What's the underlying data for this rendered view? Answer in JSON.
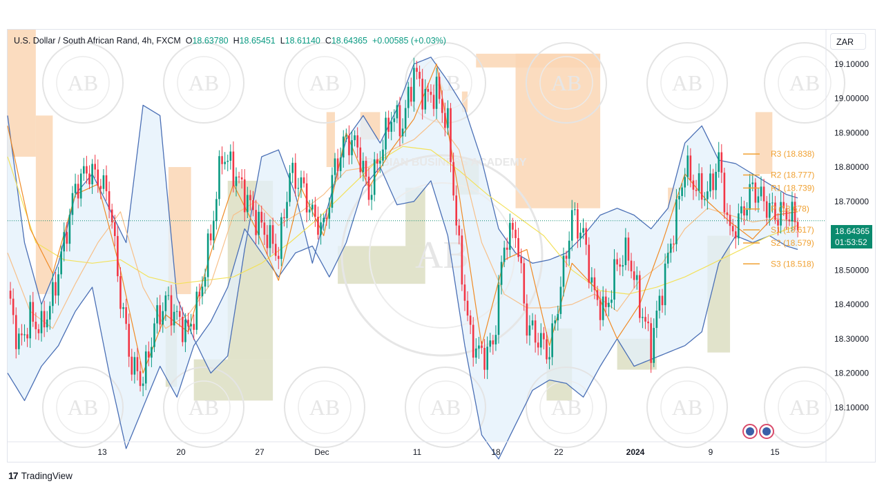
{
  "header": {
    "symbol": "U.S. Dollar / South African Rand, 4h, FXCM",
    "open_label": "O",
    "open": "18.63780",
    "high_label": "H",
    "high": "18.65451",
    "low_label": "L",
    "low": "18.61140",
    "close_label": "C",
    "close": "18.64365",
    "change": "+0.00585 (+0.03%)"
  },
  "currency_button": "ZAR",
  "price_tag": {
    "price": "18.64365",
    "countdown": "01:53:52"
  },
  "watermark": {
    "brand": "AB",
    "arc_text": "ARABIAN BUSINESS ACADEMY"
  },
  "footer": {
    "brand": "TradingView"
  },
  "colors": {
    "up": "#089981",
    "down": "#f23645",
    "band": "#4a6fb5",
    "band_fill": "#e3f0fb",
    "ma_orange": "#f08a24",
    "ma_yellow": "#f3e15a",
    "pivot": "#f0a030",
    "supply_zone": "#fad6b4",
    "demand_zone": "#d7d9b9",
    "price_line": "#0a8a6e"
  },
  "chart_data": {
    "type": "line",
    "title": "U.S. Dollar / South African Rand, 4h, FXCM",
    "ylim": [
      18.0,
      19.2
    ],
    "y_ticks": [
      "18.10000",
      "18.20000",
      "18.30000",
      "18.40000",
      "18.50000",
      "18.60000",
      "18.70000",
      "18.80000",
      "18.90000",
      "19.00000",
      "19.10000"
    ],
    "x_ticks": [
      "13",
      "20",
      "27",
      "Dec",
      "11",
      "18",
      "22",
      "2024",
      "9",
      "15"
    ],
    "last_price": 18.64365,
    "pivot_levels": [
      {
        "name": "R3",
        "label": "R3 (18.838)",
        "value": 18.838
      },
      {
        "name": "R2",
        "label": "R2 (18.777)",
        "value": 18.777
      },
      {
        "name": "R1",
        "label": "R1 (18.739)",
        "value": 18.739
      },
      {
        "name": "P",
        "label": "P (18.678)",
        "value": 18.678
      },
      {
        "name": "S1",
        "label": "S1 (18.617)",
        "value": 18.617
      },
      {
        "name": "S2",
        "label": "S2 (18.579)",
        "value": 18.579
      },
      {
        "name": "S3",
        "label": "S3 (18.518)",
        "value": 18.518
      }
    ],
    "series": [
      {
        "x": [
          0,
          4,
          8,
          12,
          16,
          20,
          24,
          28,
          32,
          36,
          40,
          44,
          48,
          52,
          56,
          60,
          64,
          68,
          72,
          76,
          80,
          84,
          88,
          92,
          96,
          100,
          104,
          108,
          112,
          116,
          120,
          124,
          128,
          132,
          136,
          140,
          144,
          148,
          152,
          156,
          160,
          164,
          168,
          172,
          176,
          180,
          184,
          188,
          192,
          196,
          200,
          204,
          208,
          212,
          216,
          220,
          224,
          228,
          232,
          236,
          240,
          244,
          248,
          252,
          256,
          260,
          264,
          268,
          272,
          276,
          280
        ],
        "values": [
          18.44,
          18.28,
          18.36,
          18.33,
          18.42,
          18.58,
          18.74,
          18.79,
          18.77,
          18.71,
          18.42,
          18.22,
          18.18,
          18.34,
          18.41,
          18.36,
          18.32,
          18.42,
          18.6,
          18.84,
          18.79,
          18.72,
          18.65,
          18.6,
          18.55,
          18.78,
          18.75,
          18.66,
          18.62,
          18.8,
          18.88,
          18.86,
          18.72,
          18.84,
          18.95,
          18.92,
          19.08,
          19.0,
          19.02,
          18.92,
          18.55,
          18.3,
          18.25,
          18.28,
          18.58,
          18.62,
          18.34,
          18.3,
          18.26,
          18.45,
          18.66,
          18.6,
          18.42,
          18.38,
          18.52,
          18.55,
          18.4,
          18.28,
          18.45,
          18.62,
          18.8,
          18.74,
          18.72,
          18.82,
          18.6,
          18.66,
          18.74,
          18.7,
          18.66,
          18.67,
          18.64
        ]
      },
      {
        "x": [
          0,
          8,
          16,
          24,
          32,
          40,
          48,
          56,
          64,
          72,
          80,
          88,
          96,
          104,
          112,
          120,
          128,
          136,
          144,
          152,
          160,
          168,
          176,
          184,
          192,
          200,
          208,
          216,
          224,
          232,
          240,
          248,
          256,
          264,
          272,
          280
        ],
        "values": [
          18.92,
          18.62,
          18.49,
          18.72,
          18.75,
          18.5,
          18.2,
          18.37,
          18.32,
          18.55,
          18.75,
          18.62,
          18.47,
          18.74,
          18.6,
          18.9,
          18.74,
          18.85,
          18.94,
          19.1,
          18.72,
          18.28,
          18.53,
          18.56,
          18.28,
          18.52,
          18.45,
          18.3,
          18.4,
          18.58,
          18.78,
          18.7,
          18.64,
          18.59,
          18.66,
          18.67
        ]
      },
      {
        "x": [
          0,
          8,
          16,
          24,
          32,
          40,
          48,
          56,
          64,
          72,
          80,
          88,
          96,
          104,
          112,
          120,
          128,
          136,
          144,
          152,
          160,
          168,
          176,
          184,
          192,
          200,
          208,
          216,
          224,
          232,
          240,
          248,
          256,
          264,
          272,
          280
        ],
        "values": [
          18.55,
          18.38,
          18.33,
          18.46,
          18.58,
          18.67,
          18.45,
          18.33,
          18.37,
          18.46,
          18.66,
          18.7,
          18.63,
          18.67,
          18.72,
          18.79,
          18.8,
          18.85,
          18.88,
          18.94,
          18.85,
          18.58,
          18.43,
          18.39,
          18.39,
          18.4,
          18.43,
          18.38,
          18.47,
          18.52,
          18.62,
          18.68,
          18.66,
          18.64,
          18.65,
          18.64
        ]
      },
      {
        "x": [
          0,
          10,
          20,
          30,
          40,
          50,
          60,
          70,
          80,
          90,
          100,
          110,
          120,
          130,
          140,
          150,
          160,
          170,
          180,
          190,
          200,
          210,
          220,
          230,
          240,
          250,
          260,
          270,
          280
        ],
        "values": [
          18.83,
          18.58,
          18.53,
          18.52,
          18.53,
          18.48,
          18.46,
          18.47,
          18.48,
          18.52,
          18.58,
          18.65,
          18.73,
          18.81,
          18.86,
          18.85,
          18.79,
          18.72,
          18.66,
          18.6,
          18.5,
          18.44,
          18.43,
          18.45,
          18.48,
          18.52,
          18.56,
          18.6,
          18.63
        ]
      },
      {
        "x": [
          0,
          6,
          12,
          18,
          24,
          30,
          36,
          42,
          48,
          54,
          60,
          66,
          72,
          78,
          84,
          90,
          96,
          102,
          108,
          114,
          120,
          126,
          132,
          138,
          144,
          150,
          156,
          162,
          168,
          174,
          180,
          186,
          192,
          198,
          204,
          210,
          216,
          222,
          228,
          234,
          240,
          246,
          252,
          258,
          264,
          270,
          276,
          280
        ],
        "values": [
          18.95,
          18.58,
          18.4,
          18.52,
          18.72,
          18.78,
          18.68,
          18.58,
          18.98,
          18.95,
          18.42,
          18.3,
          18.2,
          18.25,
          18.56,
          18.83,
          18.85,
          18.72,
          18.52,
          18.7,
          18.88,
          18.95,
          18.87,
          18.97,
          19.1,
          19.12,
          19.05,
          18.97,
          18.82,
          18.62,
          18.55,
          18.52,
          18.53,
          18.55,
          18.6,
          18.66,
          18.68,
          18.66,
          18.62,
          18.68,
          18.87,
          18.92,
          18.82,
          18.81,
          18.78,
          18.75,
          18.72,
          18.71
        ]
      },
      {
        "x": [
          0,
          6,
          12,
          18,
          24,
          30,
          36,
          42,
          48,
          54,
          60,
          66,
          72,
          78,
          84,
          90,
          96,
          102,
          108,
          114,
          120,
          126,
          132,
          138,
          144,
          150,
          156,
          162,
          168,
          174,
          180,
          186,
          192,
          198,
          204,
          210,
          216,
          222,
          228,
          234,
          240,
          246,
          252,
          258,
          264,
          270,
          276,
          280
        ],
        "values": [
          18.2,
          18.12,
          18.22,
          18.28,
          18.38,
          18.45,
          18.2,
          17.98,
          18.1,
          18.22,
          18.13,
          18.28,
          18.35,
          18.45,
          18.62,
          18.55,
          18.48,
          18.55,
          18.57,
          18.48,
          18.58,
          18.74,
          18.8,
          18.69,
          18.7,
          18.76,
          18.6,
          18.28,
          18.02,
          17.95,
          18.05,
          18.15,
          18.18,
          18.17,
          18.13,
          18.22,
          18.3,
          18.22,
          18.24,
          18.26,
          18.28,
          18.32,
          18.52,
          18.6,
          18.58,
          18.6,
          18.57,
          18.56
        ]
      }
    ],
    "zones": [
      {
        "kind": "supply",
        "x0": 0,
        "x1": 10,
        "y0": 18.83,
        "y1": 19.2
      },
      {
        "kind": "supply",
        "x0": 10,
        "x1": 16,
        "y0": 18.43,
        "y1": 18.95
      },
      {
        "kind": "supply",
        "x0": 57,
        "x1": 65,
        "y0": 18.43,
        "y1": 18.8
      },
      {
        "kind": "demand",
        "x0": 56,
        "x1": 60,
        "y0": 18.16,
        "y1": 18.45
      },
      {
        "kind": "demand",
        "x0": 66,
        "x1": 94,
        "y0": 18.12,
        "y1": 18.24
      },
      {
        "kind": "demand",
        "x0": 78,
        "x1": 94,
        "y0": 18.24,
        "y1": 18.76
      },
      {
        "kind": "supply",
        "x0": 113,
        "x1": 116,
        "y0": 18.8,
        "y1": 18.96
      },
      {
        "kind": "supply",
        "x0": 125,
        "x1": 132,
        "y0": 18.88,
        "y1": 18.96
      },
      {
        "kind": "demand",
        "x0": 117,
        "x1": 148,
        "y0": 18.46,
        "y1": 18.57
      },
      {
        "kind": "demand",
        "x0": 141,
        "x1": 148,
        "y0": 18.57,
        "y1": 18.74
      },
      {
        "kind": "supply",
        "x0": 161,
        "x1": 163,
        "y0": 18.96,
        "y1": 19.02
      },
      {
        "kind": "supply",
        "x0": 166,
        "x1": 210,
        "y0": 19.09,
        "y1": 19.13
      },
      {
        "kind": "supply",
        "x0": 180,
        "x1": 210,
        "y0": 18.68,
        "y1": 19.13
      },
      {
        "kind": "demand",
        "x0": 158,
        "x1": 167,
        "y0": 18.72,
        "y1": 18.82
      },
      {
        "kind": "demand",
        "x0": 191,
        "x1": 200,
        "y0": 18.12,
        "y1": 18.33
      },
      {
        "kind": "demand",
        "x0": 216,
        "x1": 230,
        "y0": 18.21,
        "y1": 18.3
      },
      {
        "kind": "supply",
        "x0": 234,
        "x1": 237,
        "y0": 18.67,
        "y1": 18.74
      },
      {
        "kind": "demand",
        "x0": 248,
        "x1": 256,
        "y0": 18.26,
        "y1": 18.6
      },
      {
        "kind": "supply",
        "x0": 265,
        "x1": 271,
        "y0": 18.78,
        "y1": 18.96
      }
    ]
  }
}
